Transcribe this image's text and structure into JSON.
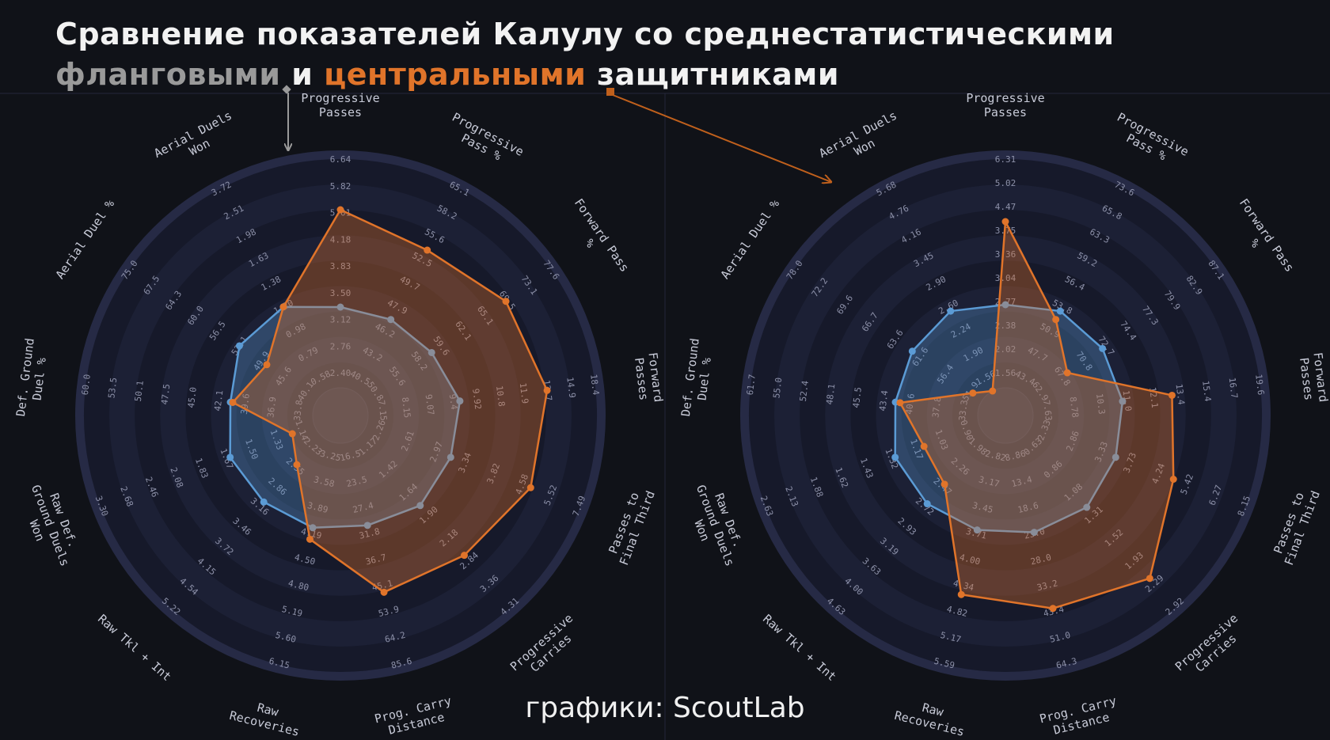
{
  "title": {
    "line1": "Сравнение показателей Калулу со среднестатистическими",
    "line2_gray": "фланговыми",
    "line2_mid": " и ",
    "line2_orange": "центральными",
    "line2_end": " защитниками"
  },
  "credit": "графики: ScoutLab",
  "colors": {
    "background": "#101218",
    "player": "#e0742a",
    "average": "#5b9bd5",
    "ring_dark": "#16192a",
    "ring_light": "#2a2f4d",
    "arrow_gray": "#9a9a9a",
    "arrow_orange": "#c0601c"
  },
  "chart_data": [
    {
      "type": "radar",
      "comparison": "фланговыми",
      "axes": [
        {
          "label": "Progressive\nPasses",
          "ticks": [
            "2.40",
            "2.76",
            "3.12",
            "3.50",
            "3.83",
            "4.18",
            "5.01",
            "5.82",
            "6.64"
          ]
        },
        {
          "label": "Progressive\nPass %",
          "ticks": [
            "40.5",
            "43.2",
            "46.2",
            "47.9",
            "49.7",
            "52.5",
            "55.6",
            "58.2",
            "65.1"
          ]
        },
        {
          "label": "Forward Pass\n%",
          "ticks": [
            "50.8",
            "55.6",
            "58.2",
            "59.6",
            "62.1",
            "65.1",
            "69.5",
            "73.1",
            "77.6"
          ]
        },
        {
          "label": "Forward\nPasses",
          "ticks": [
            "7.15",
            "8.15",
            "9.07",
            "9.4",
            "9.92",
            "10.8",
            "11.9",
            "13.7",
            "14.9",
            "18.4"
          ]
        },
        {
          "label": "Passes to\nFinal Third",
          "ticks": [
            "2.26",
            "2.61",
            "2.97",
            "3.34",
            "3.82",
            "4.58",
            "5.52",
            "7.49"
          ]
        },
        {
          "label": "Progressive\nCarries",
          "ticks": [
            "1.17",
            "1.42",
            "1.64",
            "1.90",
            "2.18",
            "2.84",
            "3.36",
            "4.31"
          ]
        },
        {
          "label": "Prog. Carry\nDistance",
          "ticks": [
            "16.5",
            "23.5",
            "27.4",
            "31.8",
            "36.7",
            "45.1",
            "53.9",
            "64.2",
            "85.6"
          ]
        },
        {
          "label": "Raw\nRecoveries",
          "ticks": [
            "3.25",
            "3.58",
            "3.89",
            "4.19",
            "4.50",
            "4.80",
            "5.19",
            "5.60",
            "6.15"
          ]
        },
        {
          "label": "Raw Tkl + Int",
          "ticks": [
            "2.23",
            "2.55",
            "2.86",
            "3.16",
            "3.46",
            "3.72",
            "4.15",
            "4.54",
            "5.22"
          ]
        },
        {
          "label": "Raw Def.\nGround Duels\nWon",
          "ticks": [
            "1.14",
            "1.33",
            "1.50",
            "1.67",
            "1.83",
            "2.08",
            "2.46",
            "2.68",
            "3.30"
          ]
        },
        {
          "label": "Def. Ground\nDuel %",
          "ticks": [
            "33.8",
            "36.9",
            "39.6",
            "42.1",
            "45.0",
            "47.5",
            "50.1",
            "53.5",
            "60.0"
          ]
        },
        {
          "label": "Aerial Duel %",
          "ticks": [
            "40.1",
            "45.6",
            "49.9",
            "53.1",
            "56.5",
            "60.0",
            "64.3",
            "67.5",
            "75.0"
          ]
        },
        {
          "label": "Aerial Duels\nWon",
          "ticks": [
            "0.58",
            "0.79",
            "0.98",
            "1.20",
            "1.38",
            "1.63",
            "1.98",
            "2.51",
            "3.72"
          ]
        }
      ],
      "player_scale": [
        0.75,
        0.67,
        0.73,
        0.76,
        0.74,
        0.67,
        0.65,
        0.42,
        0.16,
        0.1,
        0.34,
        0.26,
        0.4
      ],
      "average_scale": [
        0.34,
        0.34,
        0.35,
        0.39,
        0.38,
        0.39,
        0.36,
        0.37,
        0.37,
        0.38,
        0.35,
        0.4,
        0.4
      ]
    },
    {
      "type": "radar",
      "comparison": "центральными",
      "axes": [
        {
          "label": "Progressive\nPasses",
          "ticks": [
            "1.56",
            "2.02",
            "2.38",
            "2.77",
            "3.04",
            "3.36",
            "3.75",
            "4.47",
            "5.02",
            "6.31"
          ]
        },
        {
          "label": "Progressive\nPass %",
          "ticks": [
            "43.4",
            "47.7",
            "50.9",
            "53.8",
            "56.4",
            "59.2",
            "63.3",
            "65.8",
            "73.6"
          ]
        },
        {
          "label": "Forward Pass\n%",
          "ticks": [
            "62.9",
            "67.8",
            "70.8",
            "72.7",
            "74.4",
            "77.3",
            "79.9",
            "82.9",
            "87.1"
          ]
        },
        {
          "label": "Forward\nPasses",
          "ticks": [
            "7.63",
            "8.78",
            "10.3",
            "11.0",
            "12.1",
            "13.4",
            "15.4",
            "16.7",
            "19.6"
          ]
        },
        {
          "label": "Passes to\nFinal Third",
          "ticks": [
            "2.33",
            "2.86",
            "3.33",
            "3.73",
            "4.24",
            "5.42",
            "6.27",
            "8.15"
          ]
        },
        {
          "label": "Progressive\nCarries",
          "ticks": [
            "0.63",
            "0.86",
            "1.08",
            "1.31",
            "1.52",
            "1.93",
            "2.29",
            "2.92"
          ]
        },
        {
          "label": "Prog. Carry\nDistance",
          "ticks": [
            "8.86",
            "13.4",
            "18.6",
            "23.0",
            "28.0",
            "33.2",
            "43.4",
            "51.0",
            "64.3"
          ]
        },
        {
          "label": "Raw\nRecoveries",
          "ticks": [
            "2.82",
            "3.17",
            "3.45",
            "3.71",
            "4.00",
            "4.34",
            "4.82",
            "5.17",
            "5.59"
          ]
        },
        {
          "label": "Raw Tkl + Int",
          "ticks": [
            "1.98",
            "2.26",
            "2.47",
            "2.72",
            "2.93",
            "3.19",
            "3.63",
            "4.00",
            "4.63"
          ]
        },
        {
          "label": "Raw Def.\nGround Duels\nWon",
          "ticks": [
            "0.90",
            "1.03",
            "1.17",
            "1.32",
            "1.43",
            "1.62",
            "1.88",
            "2.13",
            "2.63"
          ]
        },
        {
          "label": "Def. Ground\nDuel %",
          "ticks": [
            "33.3",
            "37.8",
            "40.6",
            "43.4",
            "45.5",
            "48.1",
            "52.4",
            "55.0",
            "61.7"
          ]
        },
        {
          "label": "Aerial Duel %",
          "ticks": [
            "51.9",
            "56.4",
            "61.6",
            "63.6",
            "66.7",
            "69.6",
            "72.2",
            "78.0"
          ]
        },
        {
          "label": "Aerial Duels\nWon",
          "ticks": [
            "1.56",
            "1.90",
            "2.24",
            "2.60",
            "2.90",
            "3.45",
            "4.16",
            "4.76",
            "5.68"
          ]
        }
      ],
      "player_scale": [
        0.7,
        0.34,
        0.2,
        0.59,
        0.64,
        0.8,
        0.72,
        0.66,
        0.27,
        0.25,
        0.33,
        0.05,
        0.0
      ],
      "average_scale": [
        0.35,
        0.38,
        0.38,
        0.38,
        0.38,
        0.4,
        0.39,
        0.38,
        0.38,
        0.38,
        0.35,
        0.36,
        0.38
      ]
    }
  ]
}
